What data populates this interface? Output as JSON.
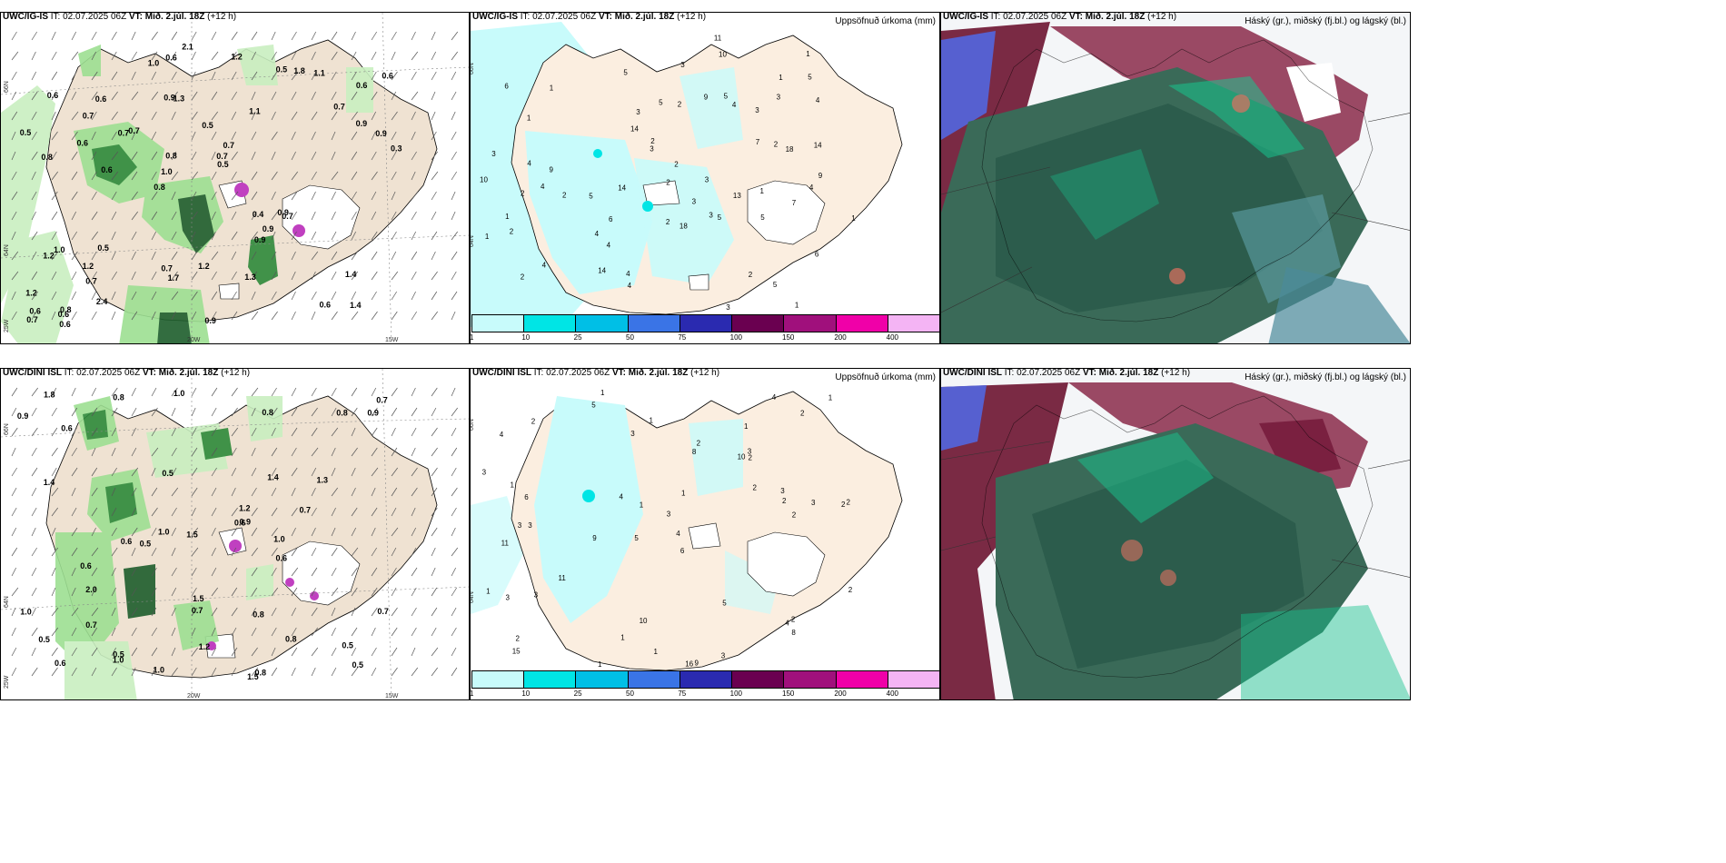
{
  "rows": [
    {
      "model": "UWC/IG-IS",
      "it_label": "IT:",
      "it_value": "02.07.2025 06Z",
      "vt_label": "VT:",
      "vt_value": "Mið. 2.júl. 18Z",
      "lead": "(+12 h)"
    },
    {
      "model": "UWC/DINI ISL",
      "it_label": "IT:",
      "it_value": "02.07.2025 06Z",
      "vt_label": "VT:",
      "vt_value": "Mið. 2.júl. 18Z",
      "lead": "(+12 h)"
    }
  ],
  "precip_title": "Uppsöfnuð úrkoma (mm)",
  "cloud_title": "Háský (gr.), miðský (fj.bl.) og lágský (bl.)",
  "colorbar": {
    "labels": [
      "1",
      "10",
      "25",
      "50",
      "75",
      "100",
      "150",
      "200",
      "400"
    ],
    "colors": [
      "#c8fbfb",
      "#00e5e5",
      "#00bfe6",
      "#3a74e6",
      "#2a2ab0",
      "#6a0050",
      "#a0107c",
      "#f000a8",
      "#f4b4f4"
    ]
  },
  "axis_labels": {
    "lat66": "66N",
    "lat64": "64N",
    "lon25": "25W",
    "lon20": "20W",
    "lon15": "15W"
  },
  "wind_values_top": [
    "1.4",
    "0.8",
    "0.6",
    "0.8",
    "1.1",
    "0.8",
    "0.9",
    "0.5",
    "1.0",
    "0.7",
    "1.2",
    "0.7",
    "1.3",
    "0.7",
    "0.7",
    "0.6",
    "0.6",
    "0.3",
    "0.4",
    "0.9",
    "1.0",
    "0.7",
    "0.8",
    "0.6",
    "0.5",
    "0.5",
    "0.6",
    "1.4",
    "0.9",
    "0.9",
    "0.7",
    "0.6",
    "0.9",
    "2.4",
    "0.9",
    "0.7",
    "0.6",
    "1.7",
    "0.5",
    "1.2",
    "0.7",
    "0.6",
    "0.9",
    "1.3",
    "1.2",
    "0.6",
    "0.7",
    "1.2",
    "1.1",
    "2.1",
    "0.6",
    "0.5",
    "0.7",
    "1.8",
    "0.6",
    "1.2",
    "1.0"
  ],
  "wind_values_bottom": [
    "1.0",
    "1.5",
    "0.5",
    "0.8",
    "0.8",
    "0.6",
    "0.6",
    "0.5",
    "1.0",
    "0.5",
    "0.8",
    "1.2",
    "1.0",
    "0.7",
    "0.8",
    "0.6",
    "1.4",
    "1.0",
    "0.5",
    "0.9",
    "0.8",
    "0.7",
    "1.2",
    "0.6",
    "1.3",
    "0.6",
    "1.0",
    "2.0",
    "1.8",
    "0.6",
    "1.5",
    "0.8",
    "1.5",
    "0.9",
    "0.7",
    "1.0",
    "0.7",
    "0.5",
    "1.4",
    "0.5",
    "0.9",
    "0.7"
  ],
  "precip_values_top": [
    "1",
    "4",
    "3",
    "6",
    "6",
    "1",
    "4",
    "5",
    "3",
    "5",
    "4",
    "5",
    "4",
    "5",
    "3",
    "2",
    "1",
    "2",
    "3",
    "2",
    "1",
    "2",
    "2",
    "1",
    "9",
    "4",
    "2",
    "2",
    "3",
    "5",
    "5",
    "2",
    "4",
    "5",
    "3",
    "7",
    "4",
    "2",
    "1",
    "3",
    "6",
    "18",
    "14",
    "11",
    "14",
    "9",
    "4",
    "10",
    "9",
    "2",
    "13",
    "14",
    "5",
    "18",
    "14",
    "10",
    "4",
    "2",
    "3",
    "7",
    "4",
    "3",
    "1",
    "3",
    "1",
    "1"
  ],
  "precip_values_bottom": [
    "1",
    "1",
    "2",
    "5",
    "6",
    "3",
    "4",
    "10",
    "11",
    "8",
    "3",
    "15",
    "5",
    "9",
    "16",
    "9",
    "10",
    "4",
    "2",
    "11",
    "6",
    "3",
    "2",
    "3",
    "1",
    "1",
    "1",
    "2",
    "2",
    "3",
    "4",
    "2",
    "3",
    "4",
    "5",
    "2",
    "3",
    "1",
    "1",
    "1",
    "2",
    "1",
    "3",
    "2",
    "1",
    "2",
    "8",
    "3",
    "3",
    "4",
    "3",
    "2",
    "1",
    "2"
  ]
}
